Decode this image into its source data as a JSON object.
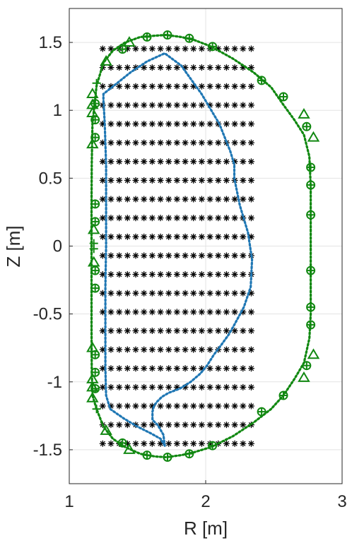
{
  "chart_data": {
    "type": "scatter",
    "title": "",
    "xlabel": "R [m]",
    "ylabel": "Z [m]",
    "xlim": [
      1,
      3
    ],
    "ylim": [
      -1.75,
      1.75
    ],
    "xticks": [
      1,
      2,
      3
    ],
    "xtick_labels": [
      "1",
      "2",
      "3"
    ],
    "yticks": [
      1.5,
      1,
      0.5,
      0,
      -0.5,
      -1,
      -1.5
    ],
    "ytick_labels": [
      "1.5",
      "1",
      "0.5",
      "0",
      "-0.5",
      "-1",
      "-1.5"
    ],
    "grid": true,
    "legend": false,
    "colors": {
      "green": "#118811",
      "blue": "#1f77b4",
      "black": "#000000"
    },
    "series": [
      {
        "kind": "grid-points",
        "marker": "asterisk",
        "color": "#000000",
        "x_start": 1.245,
        "x_step": 0.0605,
        "x_count": 19,
        "z_start": -1.455,
        "z_step": 0.1385,
        "z_count": 22
      },
      {
        "kind": "boundary",
        "style": "dotted",
        "color": "#1f77b4",
        "x": [
          1.7,
          1.67,
          1.6,
          1.5,
          1.4,
          1.3,
          1.27,
          1.265,
          1.265,
          1.265,
          1.27,
          1.27,
          1.27,
          1.26,
          1.25,
          1.25,
          1.35,
          1.45,
          1.57,
          1.7,
          1.82,
          1.97,
          2.1,
          2.18,
          2.21,
          2.21,
          2.25,
          2.31,
          2.34,
          2.33,
          2.28,
          2.21,
          2.17,
          2.12,
          2.06,
          2.01,
          1.96,
          1.89,
          1.81,
          1.73,
          1.68,
          1.64,
          1.62,
          1.61,
          1.61,
          1.65,
          1.69,
          1.7
        ],
        "y": [
          -1.47,
          -1.42,
          -1.38,
          -1.33,
          -1.27,
          -1.2,
          -1.1,
          -0.9,
          -0.6,
          -0.3,
          0.0,
          0.3,
          0.6,
          0.9,
          1.08,
          1.12,
          1.2,
          1.28,
          1.36,
          1.42,
          1.33,
          1.12,
          0.9,
          0.7,
          0.6,
          0.5,
          0.3,
          0.1,
          -0.1,
          -0.3,
          -0.45,
          -0.58,
          -0.65,
          -0.72,
          -0.8,
          -0.88,
          -0.94,
          -1.0,
          -1.05,
          -1.08,
          -1.11,
          -1.15,
          -1.18,
          -1.22,
          -1.28,
          -1.32,
          -1.39,
          -1.47
        ]
      },
      {
        "kind": "boundary",
        "style": "dotted",
        "color": "#118811",
        "x": [
          1.17,
          1.165,
          1.163,
          1.163,
          1.163,
          1.163,
          1.165,
          1.17,
          1.2,
          1.25,
          1.32,
          1.41,
          1.52,
          1.63,
          1.71,
          1.82,
          1.91,
          2.04,
          2.2,
          2.35,
          2.48,
          2.57,
          2.65,
          2.72,
          2.76,
          2.77,
          2.77,
          2.77,
          2.77,
          2.77,
          2.76,
          2.72,
          2.65,
          2.57,
          2.48,
          2.35,
          2.2,
          2.04,
          1.91,
          1.82,
          1.71,
          1.63,
          1.52,
          1.41,
          1.32,
          1.25,
          1.2,
          1.17
        ],
        "y": [
          -1.1,
          -0.9,
          -0.6,
          -0.3,
          0.0,
          0.3,
          0.6,
          0.9,
          1.18,
          1.35,
          1.44,
          1.5,
          1.54,
          1.55,
          1.555,
          1.54,
          1.52,
          1.47,
          1.38,
          1.28,
          1.17,
          1.04,
          0.93,
          0.82,
          0.66,
          0.44,
          0.2,
          -0.05,
          -0.3,
          -0.5,
          -0.68,
          -0.86,
          -0.98,
          -1.1,
          -1.2,
          -1.3,
          -1.4,
          -1.48,
          -1.52,
          -1.54,
          -1.555,
          -1.55,
          -1.53,
          -1.48,
          -1.42,
          -1.33,
          -1.2,
          -1.1
        ]
      },
      {
        "kind": "markers",
        "marker": "circle-plus",
        "color": "#118811",
        "x": [
          1.19,
          1.19,
          1.19,
          1.19,
          1.19,
          1.19,
          1.19,
          1.19,
          1.19,
          1.19,
          1.39,
          1.57,
          1.72,
          1.88,
          2.05,
          2.41,
          2.57,
          2.74,
          2.77,
          2.77,
          2.77,
          2.77,
          2.77,
          2.77,
          2.74,
          2.57,
          2.41,
          2.05,
          1.88,
          1.72,
          1.57,
          1.39
        ],
        "y": [
          0.93,
          0.8,
          0.31,
          0.18,
          -0.18,
          -0.31,
          -0.8,
          -0.93,
          -1.05,
          1.05,
          1.45,
          1.54,
          1.555,
          1.53,
          1.47,
          1.22,
          1.1,
          0.88,
          0.58,
          0.45,
          0.23,
          -0.18,
          -0.45,
          -0.58,
          -0.88,
          -1.1,
          -1.22,
          -1.47,
          -1.53,
          -1.555,
          -1.54,
          -1.45
        ]
      },
      {
        "kind": "markers",
        "marker": "triangle",
        "color": "#118811",
        "x": [
          1.17,
          1.17,
          1.17,
          1.17,
          1.18,
          1.27,
          1.44,
          2.72,
          2.79,
          2.79,
          2.72,
          1.44,
          1.27,
          1.18,
          1.17,
          1.17,
          1.17,
          1.17
        ],
        "y": [
          1.12,
          1.04,
          0.98,
          0.75,
          0.12,
          1.36,
          1.5,
          0.97,
          0.8,
          -0.8,
          -0.97,
          -1.5,
          -1.36,
          -0.12,
          -0.75,
          -0.98,
          -1.04,
          -1.12
        ]
      },
      {
        "kind": "markers",
        "marker": "plus",
        "color": "#118811",
        "x": [
          1.2,
          1.18,
          1.2,
          1.18
        ],
        "y": [
          1.2,
          0.02,
          -1.2,
          -0.02
        ]
      }
    ]
  }
}
